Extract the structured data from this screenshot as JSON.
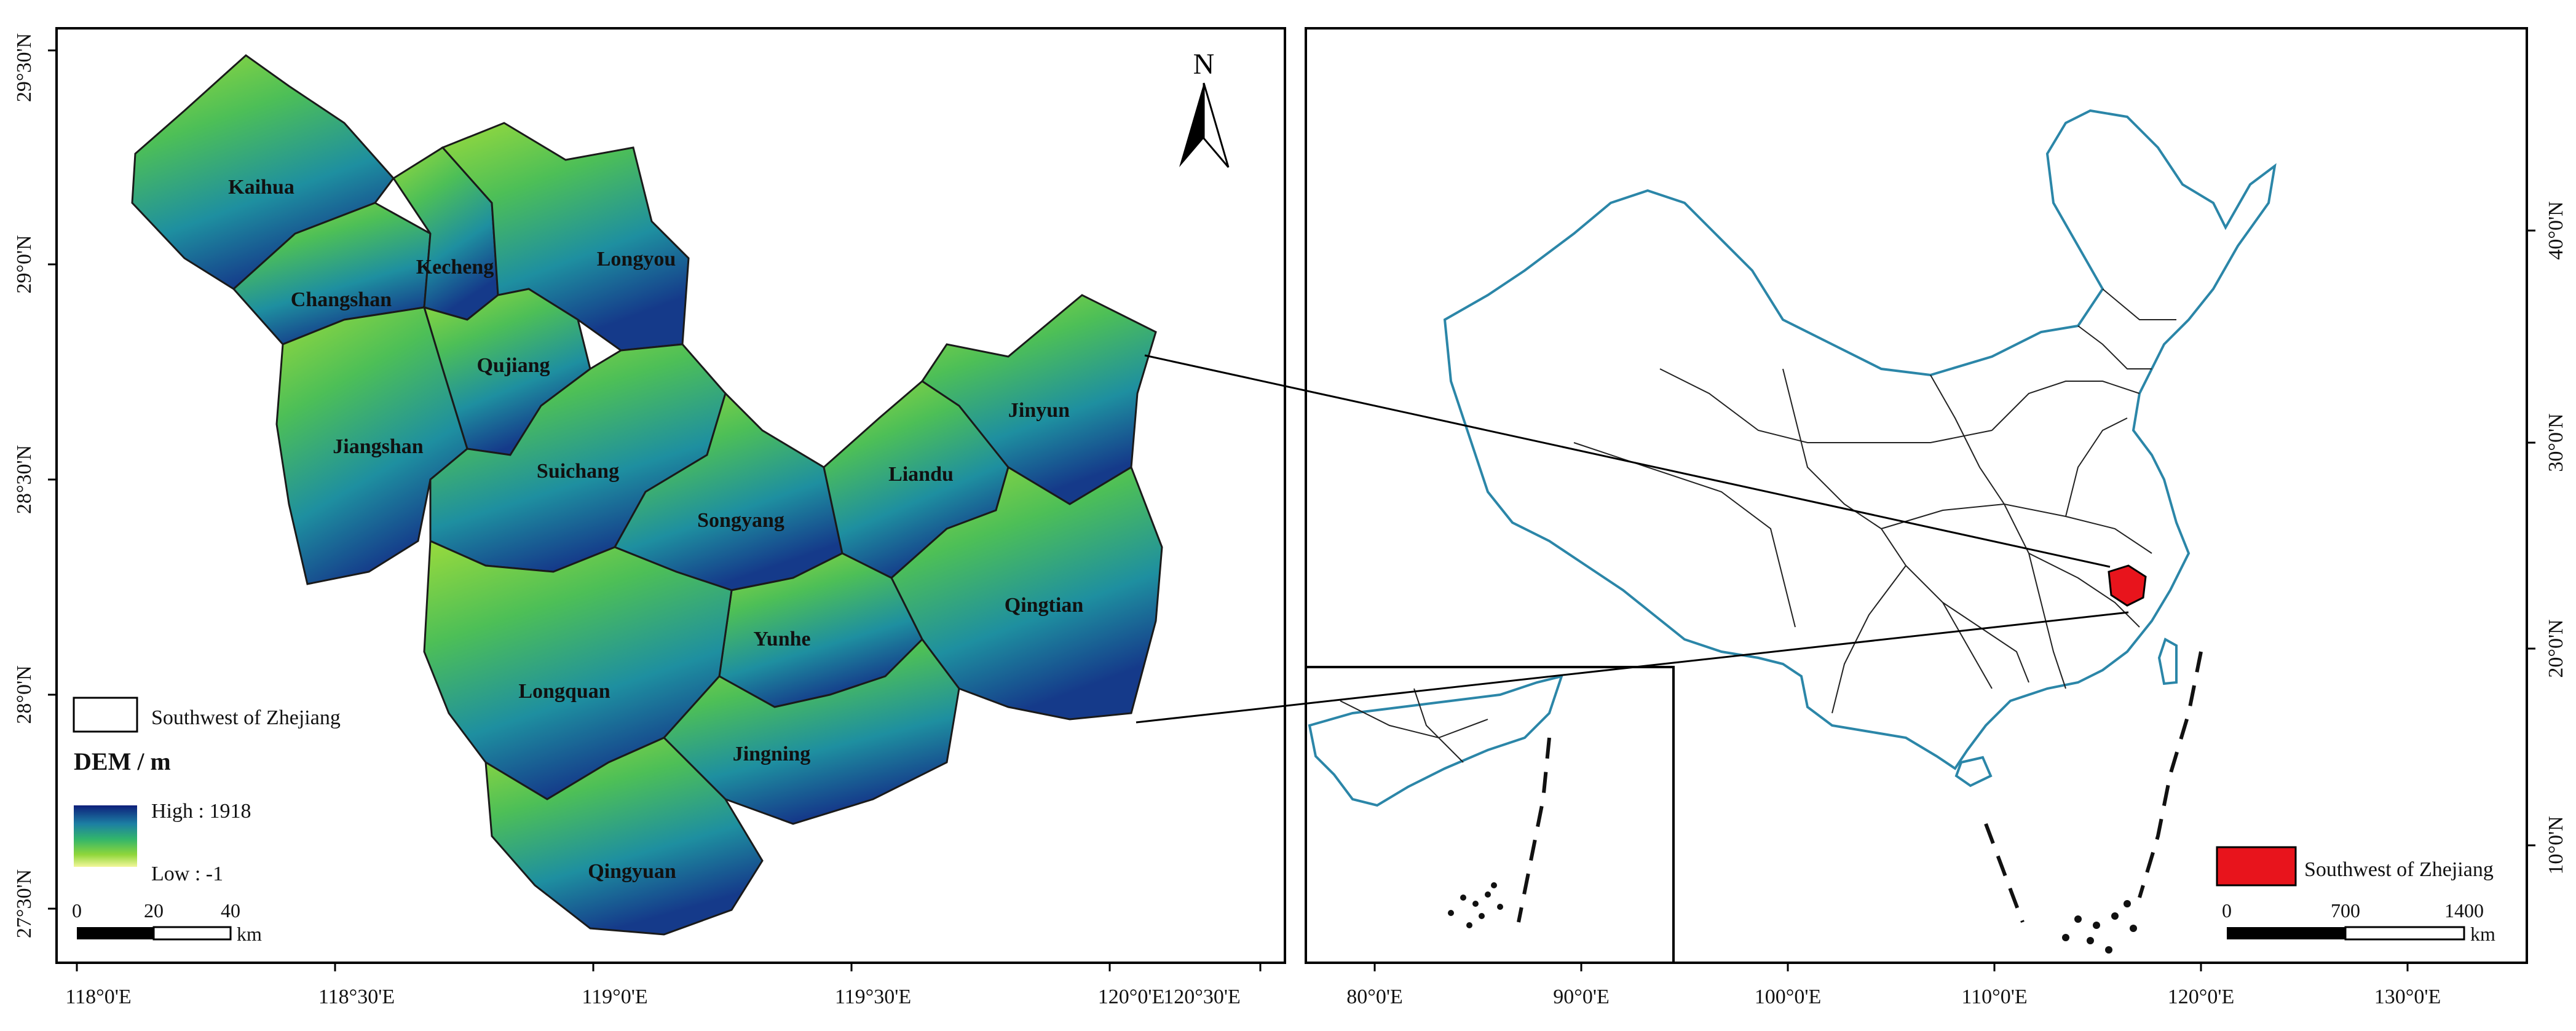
{
  "left_map": {
    "counties": [
      {
        "name": "Kaihua"
      },
      {
        "name": "Changshan"
      },
      {
        "name": "Kecheng"
      },
      {
        "name": "Longyou"
      },
      {
        "name": "Qujiang"
      },
      {
        "name": "Jiangshan"
      },
      {
        "name": "Suichang"
      },
      {
        "name": "Songyang"
      },
      {
        "name": "Liandu"
      },
      {
        "name": "Jinyun"
      },
      {
        "name": "Qingtian"
      },
      {
        "name": "Yunhe"
      },
      {
        "name": "Longquan"
      },
      {
        "name": "Jingning"
      },
      {
        "name": "Qingyuan"
      }
    ],
    "north_arrow_label": "N",
    "legend": {
      "boundary_label": "Southwest of Zhejiang",
      "dem_title": "DEM / m",
      "high_label": "High : 1918",
      "low_label": "Low : -1",
      "ramp_colors": [
        "#0d1f7a",
        "#1c7fa3",
        "#32b56b",
        "#8fd63a",
        "#f2f79a"
      ]
    },
    "scalebar": {
      "ticks": [
        "0",
        "20",
        "40"
      ],
      "unit": "km"
    },
    "x_ticks": [
      "118°0'E",
      "118°30'E",
      "119°0'E",
      "119°30'E",
      "120°0'E",
      "120°30'E"
    ],
    "y_ticks": [
      "29°30'N",
      "29°0'N",
      "28°30'N",
      "28°0'N",
      "27°30'N"
    ]
  },
  "right_map": {
    "legend_label": "Southwest of Zhejiang",
    "highlight_color": "#e8141c",
    "coast_color": "#2b86a8",
    "scalebar": {
      "ticks": [
        "0",
        "700",
        "1400"
      ],
      "unit": "km"
    },
    "x_ticks": [
      "80°0'E",
      "90°0'E",
      "100°0'E",
      "110°0'E",
      "120°0'E",
      "130°0'E"
    ],
    "y_ticks": [
      "40°0'N",
      "30°0'N",
      "20°0'N",
      "10°0'N"
    ]
  }
}
